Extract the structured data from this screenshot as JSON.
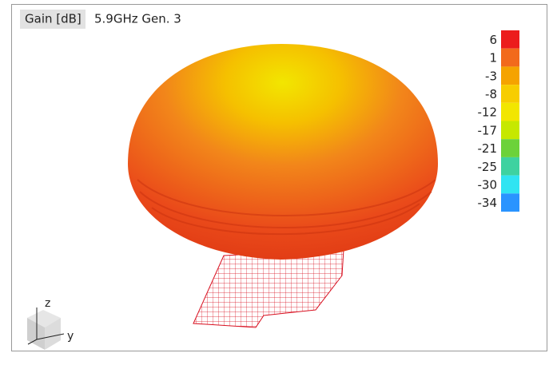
{
  "header": {
    "label": "Gain [dB]",
    "title": "5.9GHz Gen. 3"
  },
  "colorbar": {
    "entries": [
      {
        "value": 6,
        "color": "#ec1c1c"
      },
      {
        "value": 1,
        "color": "#f26a1c"
      },
      {
        "value": -3,
        "color": "#f5a300"
      },
      {
        "value": -8,
        "color": "#f7cd00"
      },
      {
        "value": -12,
        "color": "#f2e600"
      },
      {
        "value": -17,
        "color": "#c6e800"
      },
      {
        "value": -21,
        "color": "#6cd23a"
      },
      {
        "value": -25,
        "color": "#3ed2a0"
      },
      {
        "value": -30,
        "color": "#30e4f2"
      },
      {
        "value": -34,
        "color": "#2a94ff"
      }
    ]
  },
  "axes": {
    "z": "z",
    "y": "y"
  }
}
